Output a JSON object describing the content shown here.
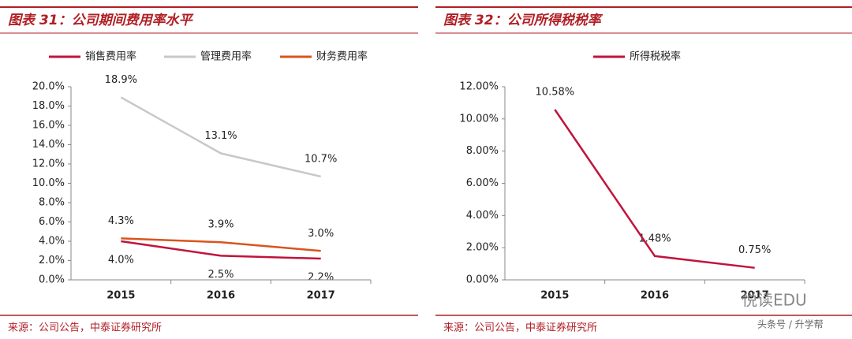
{
  "chart_data": [
    {
      "type": "line",
      "title": "图表 31：公司期间费用率水平",
      "source": "来源：公司公告，中泰证券研究所",
      "categories": [
        "2015",
        "2016",
        "2017"
      ],
      "series": [
        {
          "name": "销售费用率",
          "color": "#c0143c",
          "values": [
            4.0,
            2.5,
            2.2
          ],
          "value_labels": [
            "4.0%",
            "2.5%",
            "2.2%"
          ]
        },
        {
          "name": "管理费用率",
          "color": "#c8c8cc",
          "values": [
            18.9,
            13.1,
            10.7
          ],
          "value_labels": [
            "18.9%",
            "13.1%",
            "10.7%"
          ]
        },
        {
          "name": "财务费用率",
          "color": "#d9541e",
          "values": [
            4.3,
            3.9,
            3.0
          ],
          "value_labels": [
            "4.3%",
            "3.9%",
            "3.0%"
          ]
        }
      ],
      "ylim": [
        0,
        20
      ],
      "yticks": [
        {
          "value": 0,
          "label": "0.0%"
        },
        {
          "value": 2,
          "label": "2.0%"
        },
        {
          "value": 4,
          "label": "4.0%"
        },
        {
          "value": 6,
          "label": "6.0%"
        },
        {
          "value": 8,
          "label": "8.0%"
        },
        {
          "value": 10,
          "label": "10.0%"
        },
        {
          "value": 12,
          "label": "12.0%"
        },
        {
          "value": 14,
          "label": "14.0%"
        },
        {
          "value": 16,
          "label": "16.0%"
        },
        {
          "value": 18,
          "label": "18.0%"
        },
        {
          "value": 20,
          "label": "20.0%"
        }
      ],
      "grid": false
    },
    {
      "type": "line",
      "title": "图表 32：公司所得税税率",
      "source": "来源：公司公告，中泰证券研究所",
      "categories": [
        "2015",
        "2016",
        "2017"
      ],
      "series": [
        {
          "name": "所得税税率",
          "color": "#c0143c",
          "values": [
            10.58,
            1.48,
            0.75
          ],
          "value_labels": [
            "10.58%",
            "1.48%",
            "0.75%"
          ]
        }
      ],
      "ylim": [
        0,
        12
      ],
      "yticks": [
        {
          "value": 0,
          "label": "0.00%"
        },
        {
          "value": 2,
          "label": "2.00%"
        },
        {
          "value": 4,
          "label": "4.00%"
        },
        {
          "value": 6,
          "label": "6.00%"
        },
        {
          "value": 8,
          "label": "8.00%"
        },
        {
          "value": 10,
          "label": "10.00%"
        },
        {
          "value": 12,
          "label": "12.00%"
        }
      ],
      "grid": false
    }
  ],
  "watermark": {
    "brand": "悦读EDU",
    "credit": "头条号 / 升学帮"
  }
}
